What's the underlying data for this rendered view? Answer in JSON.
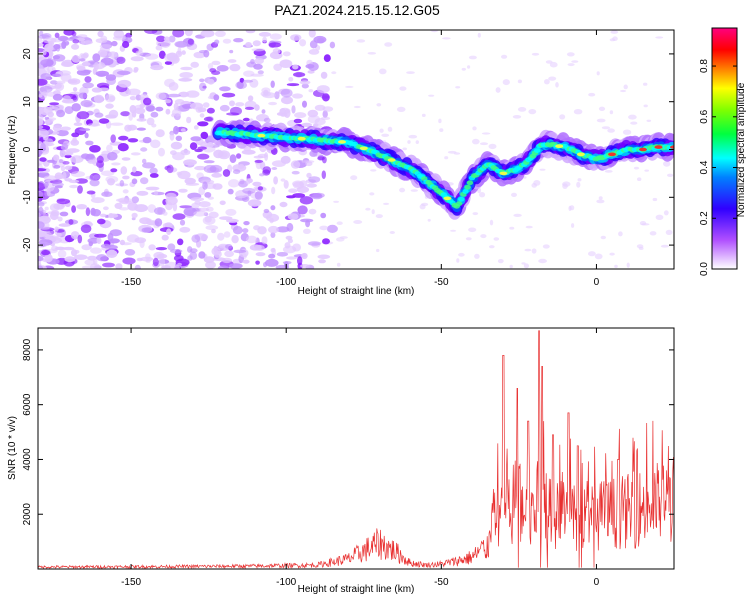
{
  "title": "PAZ1.2024.215.15.12.G05",
  "chart_data": [
    {
      "type": "heatmap",
      "xlabel": "Height of straight line (km)",
      "ylabel": "Frequency (Hz)",
      "xlim": [
        -180,
        25
      ],
      "ylim": [
        -25,
        25
      ],
      "xticks": [
        -150,
        -100,
        -50,
        0
      ],
      "yticks": [
        -20,
        -10,
        0,
        10,
        20
      ],
      "ridge": {
        "x": [
          -120,
          -110,
          -100,
          -90,
          -80,
          -70,
          -60,
          -50,
          -45,
          -40,
          -35,
          -30,
          -25,
          -20,
          -18,
          -15,
          -10,
          -5,
          0,
          5,
          10,
          15,
          20,
          25
        ],
        "y": [
          3.5,
          3,
          2.5,
          2,
          1.5,
          -1,
          -4,
          -9,
          -12,
          -6,
          -3,
          -5,
          -4,
          -1,
          1,
          1,
          0.5,
          -1,
          -2,
          -1,
          0,
          0,
          0.5,
          0.5
        ]
      },
      "colorbar": {
        "label": "Normalized spectral amplitude",
        "range": [
          0,
          0.95
        ],
        "ticks": [
          0.0,
          0.2,
          0.4,
          0.6,
          0.8
        ]
      },
      "colors": [
        "#ffffff",
        "#a000ff",
        "#0000ff",
        "#00ffff",
        "#00ff00",
        "#ffff00",
        "#ff0000",
        "#ff0080"
      ]
    },
    {
      "type": "line",
      "xlabel": "Height of straight line (km)",
      "ylabel": "SNR (10 * v/v)",
      "xlim": [
        -180,
        25
      ],
      "ylim": [
        0,
        8800
      ],
      "xticks": [
        -150,
        -100,
        -50,
        0
      ],
      "yticks": [
        2000,
        4000,
        6000,
        8000
      ],
      "color": "#e83030",
      "envelope": {
        "x": [
          -180,
          -140,
          -110,
          -90,
          -80,
          -75,
          -70,
          -65,
          -60,
          -55,
          -50,
          -45,
          -40,
          -35,
          -33,
          -31,
          -30,
          -28,
          -25,
          -22,
          -20,
          -18,
          -15,
          -12,
          -10,
          -5,
          0,
          10,
          20,
          25
        ],
        "y": [
          100,
          120,
          150,
          200,
          500,
          900,
          1300,
          900,
          300,
          200,
          250,
          400,
          600,
          1200,
          2500,
          3500,
          3800,
          3600,
          3300,
          3000,
          3200,
          3400,
          3000,
          2800,
          2700,
          2600,
          2700,
          2900,
          3300,
          3500
        ]
      },
      "spikes": [
        {
          "x": -30,
          "y": 7800
        },
        {
          "x": -25.5,
          "y": 6600
        },
        {
          "x": -18.5,
          "y": 8700
        },
        {
          "x": -17.5,
          "y": 7400
        },
        {
          "x": -9,
          "y": 5700
        },
        {
          "x": -22,
          "y": 5400
        },
        {
          "x": -14,
          "y": 4900
        },
        {
          "x": -6,
          "y": 4500
        },
        {
          "x": 7,
          "y": 4000
        }
      ]
    }
  ]
}
